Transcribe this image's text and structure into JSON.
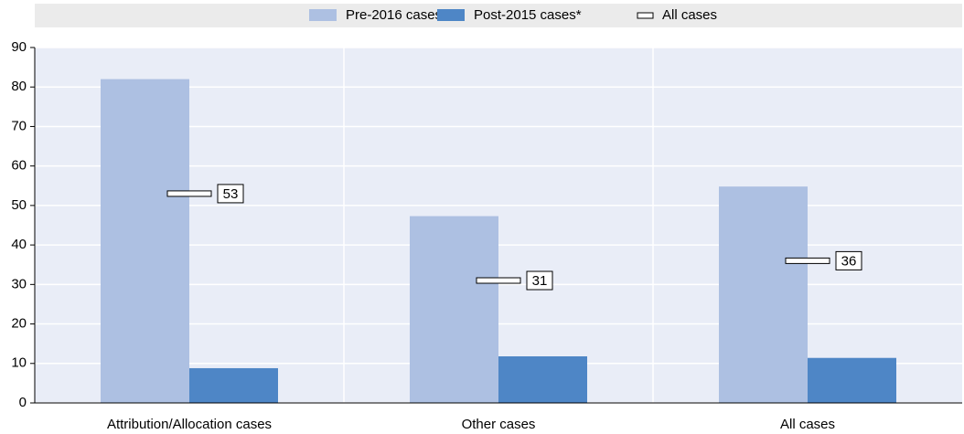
{
  "chart_data": {
    "type": "bar",
    "categories": [
      "Attribution/Allocation cases",
      "Other cases",
      "All cases"
    ],
    "series": [
      {
        "name": "Pre-2016 cases",
        "color": "#adc0e2",
        "values": [
          82,
          47.3,
          54.8
        ]
      },
      {
        "name": "Post-2015 cases*",
        "color": "#4e86c6",
        "values": [
          8.8,
          11.8,
          11.4
        ]
      },
      {
        "name": "All cases",
        "color": "#ffffff",
        "values": [
          53,
          31,
          36
        ],
        "marker": true
      }
    ],
    "ylim": [
      0,
      90
    ],
    "yticks": [
      0,
      10,
      20,
      30,
      40,
      50,
      60,
      70,
      80,
      90
    ],
    "grid": true,
    "legend": "top"
  }
}
